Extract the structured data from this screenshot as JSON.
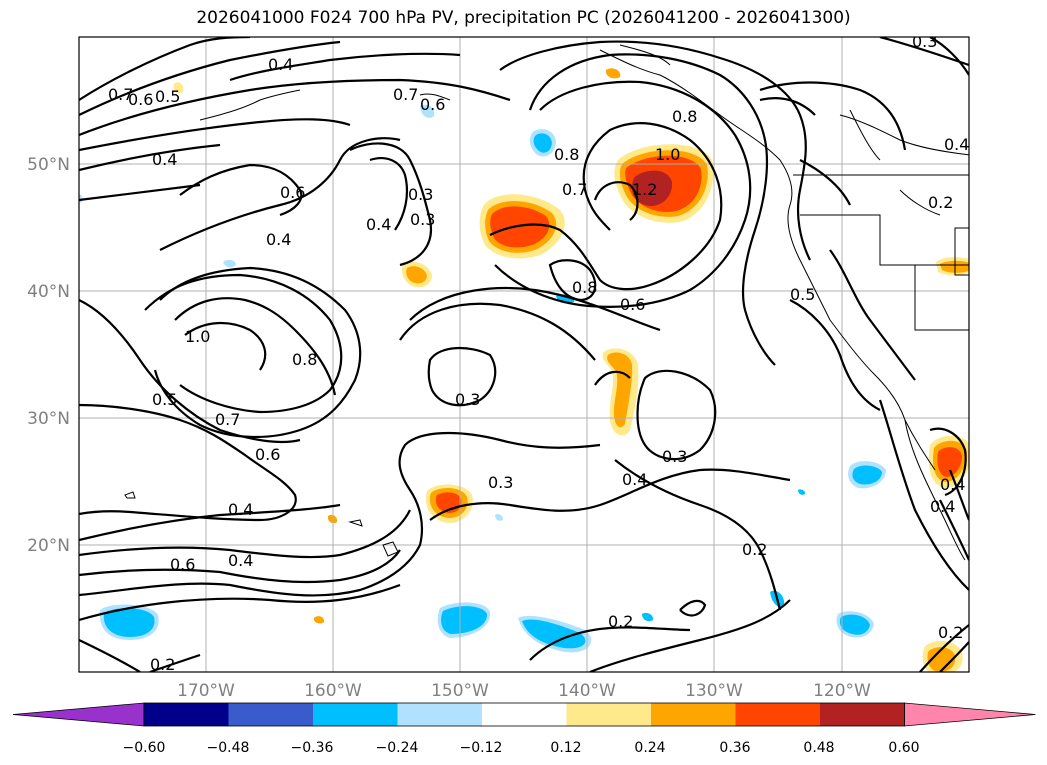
{
  "title": "2026041000 F024 700 hPa PV, precipitation PC (2026041200 - 2026041300)",
  "map": {
    "lon_labels": [
      "170°W",
      "160°W",
      "150°W",
      "140°W",
      "130°W",
      "120°W"
    ],
    "lat_labels": [
      "50°N",
      "40°N",
      "30°N",
      "20°N"
    ],
    "lon_values": [
      -170,
      -160,
      -150,
      -140,
      -130,
      -120
    ],
    "lat_values": [
      50,
      40,
      30,
      20
    ],
    "lon_range": [
      -180,
      -110
    ],
    "lat_range": [
      10,
      60
    ]
  },
  "contour_labels": [
    "0.7",
    "0.4",
    "0.5",
    "0.6",
    "0.4",
    "0.3",
    "0.7",
    "0.6",
    "0.8",
    "1.0",
    "1.2",
    "0.8",
    "0.7",
    "0.6",
    "0.3",
    "0.4",
    "0.8",
    "0.6",
    "0.2",
    "0.4",
    "0.4",
    "0.5",
    "1.0",
    "0.8",
    "0.5",
    "0.7",
    "0.6",
    "0.3",
    "0.3",
    "0.4",
    "0.3",
    "0.4",
    "0.4",
    "0.6",
    "0.4",
    "0.2",
    "0.2",
    "0.2",
    "0.3",
    "0.4",
    "0.2"
  ],
  "colorbar": {
    "ticks": [
      "−0.60",
      "−0.48",
      "−0.36",
      "−0.24",
      "−0.12",
      "0.12",
      "0.24",
      "0.36",
      "0.48",
      "0.60"
    ],
    "colors": [
      "#9932cc",
      "#00008b",
      "#3a5bcc",
      "#00bfff",
      "#b0e2ff",
      "#ffffff",
      "#ffe98a",
      "#ffa500",
      "#ff4500",
      "#b22222",
      "#ff85ad"
    ]
  }
}
